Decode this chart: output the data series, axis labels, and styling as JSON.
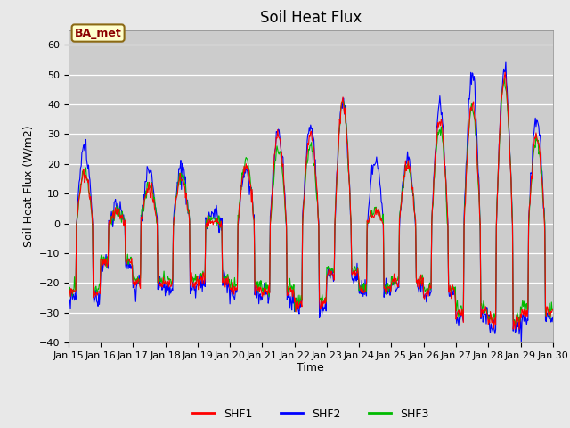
{
  "title": "Soil Heat Flux",
  "ylabel": "Soil Heat Flux (W/m2)",
  "xlabel": "Time",
  "ylim": [
    -40,
    65
  ],
  "xlim": [
    0,
    360
  ],
  "yticks": [
    -40,
    -30,
    -20,
    -10,
    0,
    10,
    20,
    30,
    40,
    50,
    60
  ],
  "xtick_labels": [
    "Jan 15",
    "Jan 16",
    "Jan 17",
    "Jan 18",
    "Jan 19",
    "Jan 20",
    "Jan 21",
    "Jan 22",
    "Jan 23",
    "Jan 24",
    "Jan 25",
    "Jan 26",
    "Jan 27",
    "Jan 28",
    "Jan 29",
    "Jan 30"
  ],
  "xtick_positions": [
    0,
    24,
    48,
    72,
    96,
    120,
    144,
    168,
    192,
    216,
    240,
    264,
    288,
    312,
    336,
    360
  ],
  "annotation_text": "BA_met",
  "colors": {
    "SHF1": "#ff0000",
    "SHF2": "#0000ff",
    "SHF3": "#00bb00"
  },
  "linewidth": 0.8,
  "fig_bg_color": "#e8e8e8",
  "plot_bg_color": "#cccccc",
  "title_fontsize": 12,
  "label_fontsize": 9,
  "tick_fontsize": 8
}
